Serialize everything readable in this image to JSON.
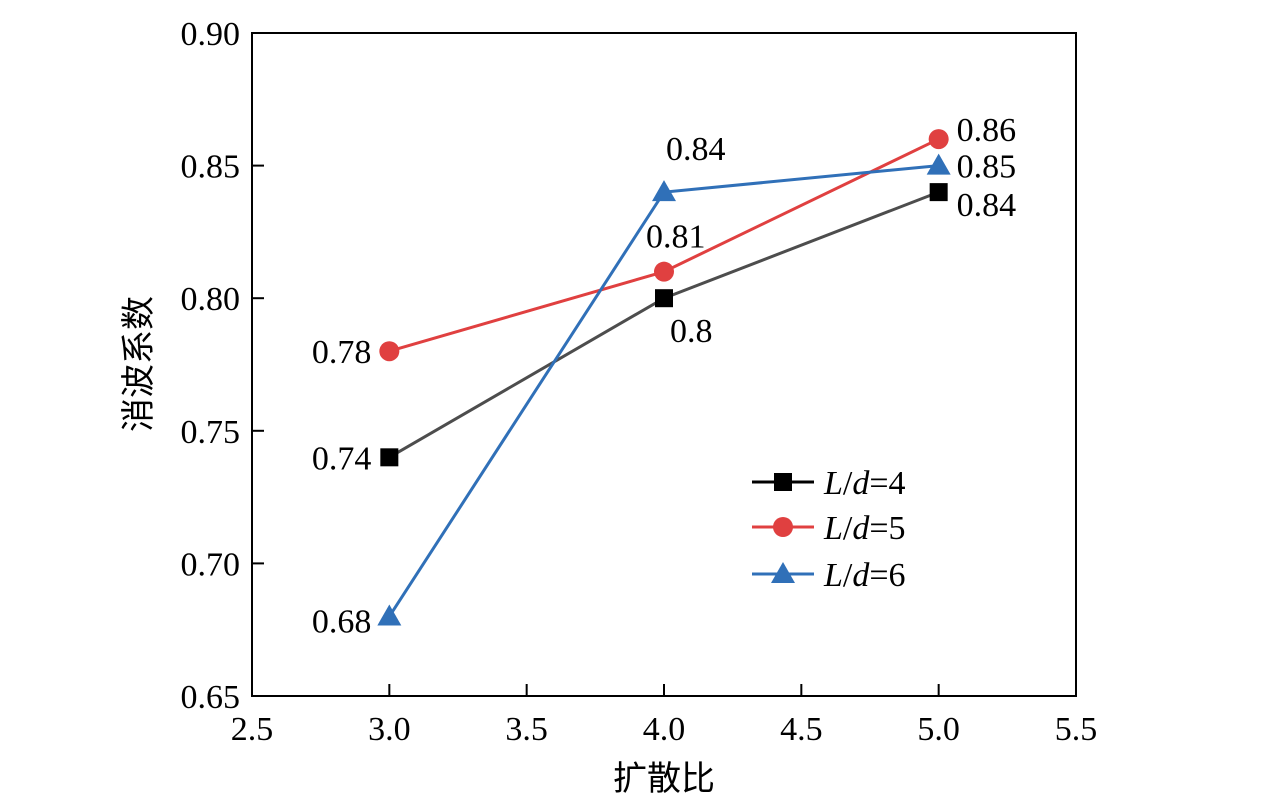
{
  "chart_data": {
    "type": "line",
    "xlabel": "扩散比",
    "ylabel": "消波系数",
    "xlim": [
      2.5,
      5.5
    ],
    "ylim": [
      0.65,
      0.9
    ],
    "xticks": [
      "2.5",
      "3.0",
      "3.5",
      "4.0",
      "4.5",
      "5.0",
      "5.5"
    ],
    "yticks": [
      "0.65",
      "0.70",
      "0.75",
      "0.80",
      "0.85",
      "0.90"
    ],
    "grid": false,
    "legend_position": "bottom-right",
    "x": [
      3.0,
      4.0,
      5.0
    ],
    "series": [
      {
        "name": "L/d=4",
        "name_parts": {
          "var1": "L",
          "slash": "/",
          "var2": "d",
          "eq": "=4"
        },
        "color": "#4d4d4d",
        "marker_color": "#000000",
        "marker": "square",
        "values": [
          0.74,
          0.8,
          0.84
        ],
        "labels": [
          "0.74",
          "0.8",
          "0.84"
        ]
      },
      {
        "name": "L/d=5",
        "name_parts": {
          "var1": "L",
          "slash": "/",
          "var2": "d",
          "eq": "=5"
        },
        "color": "#e04040",
        "marker_color": "#e04040",
        "marker": "circle",
        "values": [
          0.78,
          0.81,
          0.86
        ],
        "labels": [
          "0.78",
          "0.81",
          "0.86"
        ]
      },
      {
        "name": "L/d=6",
        "name_parts": {
          "var1": "L",
          "slash": "/",
          "var2": "d",
          "eq": "=6"
        },
        "color": "#3070b8",
        "marker_color": "#3070b8",
        "marker": "triangle",
        "values": [
          0.68,
          0.84,
          0.85
        ],
        "labels": [
          "0.68",
          "0.84",
          "0.85"
        ]
      }
    ]
  }
}
